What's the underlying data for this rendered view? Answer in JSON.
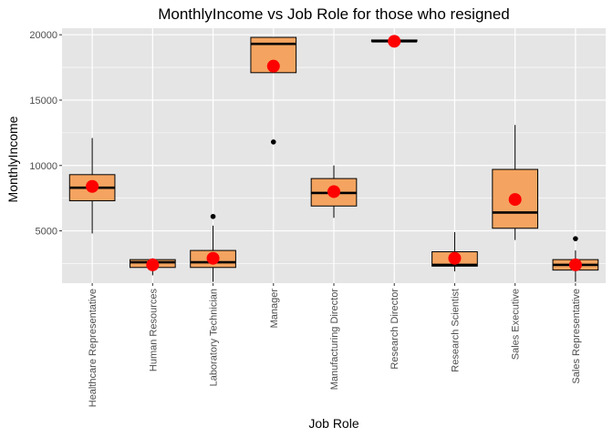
{
  "chart_data": {
    "type": "box",
    "title": "MonthlyIncome vs Job Role for those who resigned",
    "xlabel": "Job Role",
    "ylabel": "MonthlyIncome",
    "ylim": [
      0,
      20500
    ],
    "yticks": [
      5000,
      10000,
      15000,
      20000
    ],
    "grid": true,
    "colors": {
      "panel_bg": "#e5e5e5",
      "grid": "#ffffff",
      "box_fill": "#f4a460",
      "box_stroke": "#000000",
      "mean_point": "#ff0000",
      "outlier": "#000000"
    },
    "categories": [
      "Healthcare Representative",
      "Human Resources",
      "Laboratory Technician",
      "Manager",
      "Manufacturing Director",
      "Research Director",
      "Research Scientist",
      "Sales Executive",
      "Sales Representative"
    ],
    "boxes": [
      {
        "category": "Healthcare Representative",
        "min": 4800,
        "q1": 7300,
        "median": 8300,
        "q3": 9300,
        "max": 12100,
        "mean": 8400,
        "outliers": []
      },
      {
        "category": "Human Resources",
        "min": 1600,
        "q1": 2200,
        "median": 2600,
        "q3": 2800,
        "max": 2900,
        "mean": 2400,
        "outliers": []
      },
      {
        "category": "Laboratory Technician",
        "min": 1100,
        "q1": 2200,
        "median": 2600,
        "q3": 3500,
        "max": 5400,
        "mean": 2900,
        "outliers": [
          6100
        ]
      },
      {
        "category": "Manager",
        "min": 17100,
        "q1": 17100,
        "median": 19300,
        "q3": 19800,
        "max": 19800,
        "mean": 17600,
        "outliers": [
          11800
        ]
      },
      {
        "category": "Manufacturing Director",
        "min": 6000,
        "q1": 6900,
        "median": 7900,
        "q3": 9000,
        "max": 10000,
        "mean": 8000,
        "outliers": []
      },
      {
        "category": "Research Director",
        "min": 19500,
        "q1": 19500,
        "median": 19500,
        "q3": 19600,
        "max": 19600,
        "mean": 19500,
        "outliers": []
      },
      {
        "category": "Research Scientist",
        "min": 1900,
        "q1": 2300,
        "median": 2400,
        "q3": 3400,
        "max": 4900,
        "mean": 2900,
        "outliers": []
      },
      {
        "category": "Sales Executive",
        "min": 4300,
        "q1": 5200,
        "median": 6400,
        "q3": 9700,
        "max": 13100,
        "mean": 7400,
        "outliers": []
      },
      {
        "category": "Sales Representative",
        "min": 1100,
        "q1": 2000,
        "median": 2400,
        "q3": 2800,
        "max": 3500,
        "mean": 2400,
        "outliers": [
          4400
        ]
      }
    ]
  }
}
